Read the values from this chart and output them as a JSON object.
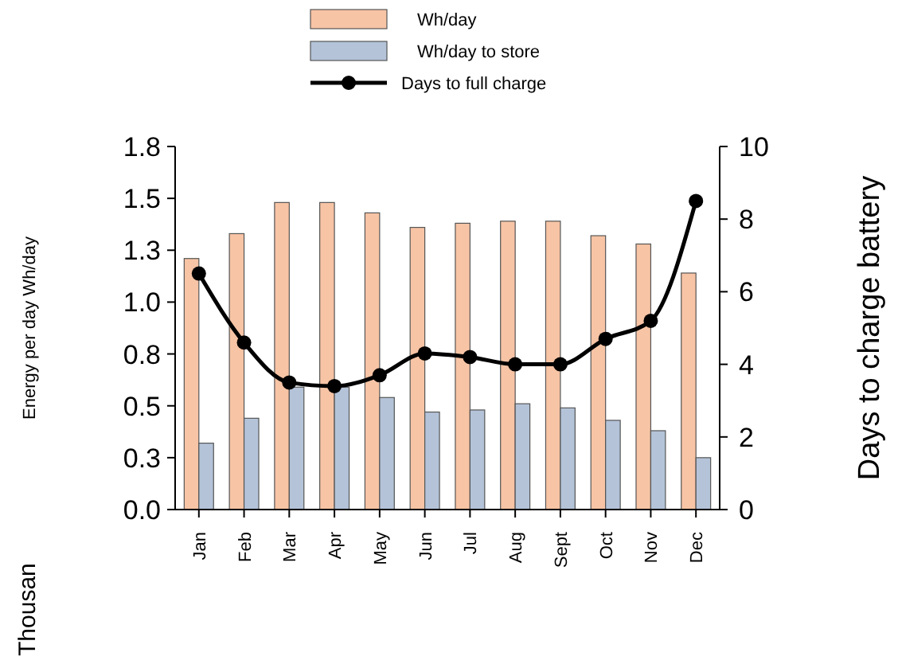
{
  "chart_data": {
    "type": "bar",
    "ylabel": "Energy per day Wh/day",
    "y2label": "Days to charge battery",
    "annotations": [
      "Thousan"
    ],
    "categories": [
      "Jan",
      "Feb",
      "Mar",
      "Apr",
      "May",
      "Jun",
      "Jul",
      "Aug",
      "Sept",
      "Oct",
      "Nov",
      "Dec"
    ],
    "series": [
      {
        "name": "Wh/day",
        "color": "#f7c4a5",
        "values": [
          1.21,
          1.33,
          1.48,
          1.48,
          1.43,
          1.36,
          1.38,
          1.39,
          1.39,
          1.32,
          1.28,
          1.14
        ]
      },
      {
        "name": "Wh/day to store",
        "color": "#b4c3d8",
        "values": [
          0.32,
          0.44,
          0.59,
          0.59,
          0.54,
          0.47,
          0.48,
          0.51,
          0.49,
          0.43,
          0.38,
          0.25
        ]
      },
      {
        "name": "Days to full charge",
        "type": "line",
        "axis": "y2",
        "color": "#000000",
        "marker": "circle",
        "values": [
          6.5,
          4.6,
          3.5,
          3.4,
          3.7,
          4.3,
          4.2,
          4.0,
          4.0,
          4.7,
          5.2,
          8.5
        ]
      }
    ],
    "ylim": [
      0,
      1.75
    ],
    "yticks": [
      {
        "value": 0,
        "label": "0.0"
      },
      {
        "value": 0.25,
        "label": "0.3"
      },
      {
        "value": 0.5,
        "label": "0.5"
      },
      {
        "value": 0.75,
        "label": "0.8"
      },
      {
        "value": 1,
        "label": "1.0"
      },
      {
        "value": 1.25,
        "label": "1.3"
      },
      {
        "value": 1.5,
        "label": "1.5"
      },
      {
        "value": 1.75,
        "label": "1.8"
      }
    ],
    "y2lim": [
      0,
      10
    ],
    "y2ticks": [
      0,
      2,
      4,
      6,
      8,
      10
    ],
    "legend": "top"
  }
}
